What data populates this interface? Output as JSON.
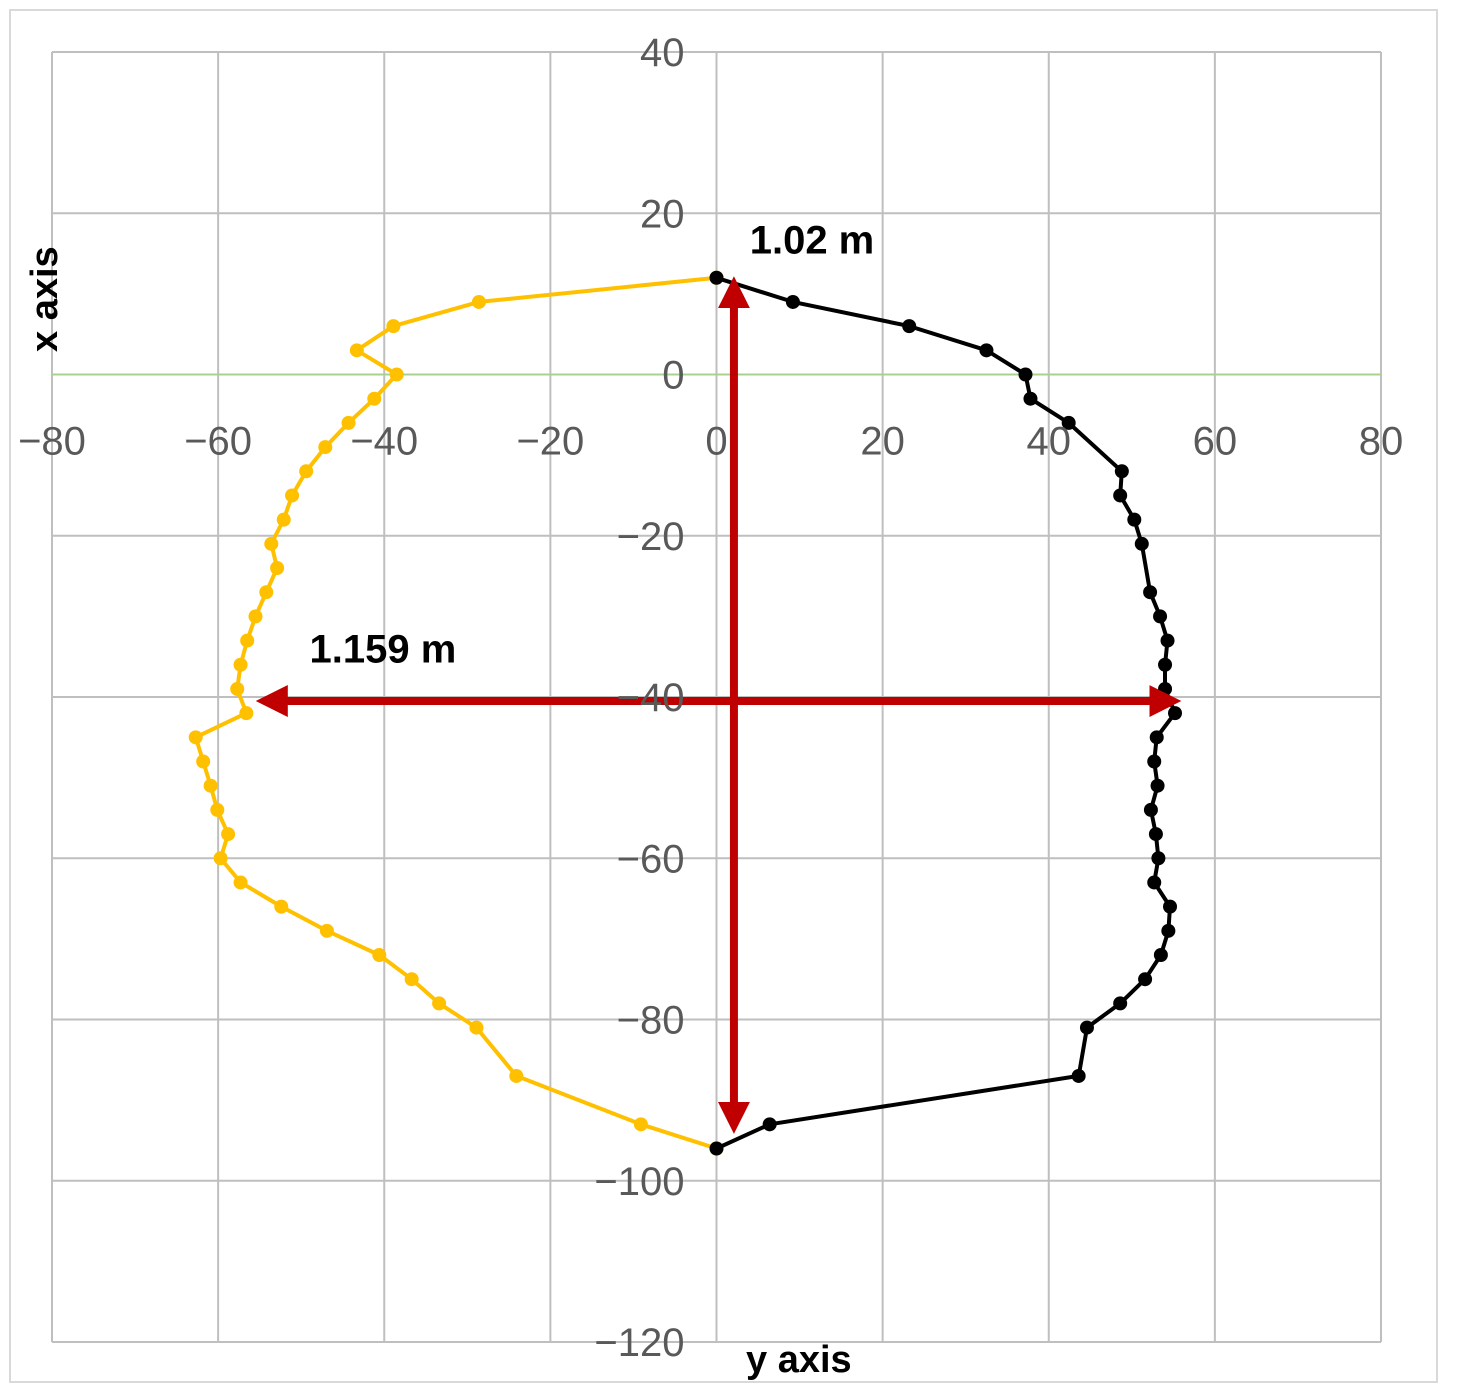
{
  "chart_data": {
    "type": "scatter",
    "xlabel": "y axis",
    "ylabel": "x axis",
    "xlim": [
      -80,
      80
    ],
    "ylim": [
      -120,
      40
    ],
    "x_ticks": [
      -80,
      -60,
      -40,
      -20,
      0,
      20,
      40,
      60,
      80
    ],
    "y_ticks": [
      40,
      20,
      0,
      -20,
      -40,
      -60,
      -80,
      -100,
      -120
    ],
    "x_tick_labels": [
      "−80",
      "−60",
      "−40",
      "−20",
      "0",
      "20",
      "40",
      "60",
      "80"
    ],
    "y_tick_labels": [
      "40",
      "20",
      "0",
      "−20",
      "−40",
      "−60",
      "−80",
      "−100",
      "−120"
    ],
    "grid": true,
    "series": [
      {
        "color": "#ffc000",
        "points": [
          [
            0,
            12
          ],
          [
            -28.6,
            9
          ],
          [
            -38.9,
            6
          ],
          [
            -43.3,
            3
          ],
          [
            -38.5,
            0
          ],
          [
            -41.2,
            -3
          ],
          [
            -44.3,
            -6
          ],
          [
            -47.1,
            -9
          ],
          [
            -49.4,
            -12
          ],
          [
            -51.1,
            -15
          ],
          [
            -52.1,
            -18
          ],
          [
            -53.6,
            -21
          ],
          [
            -52.9,
            -24
          ],
          [
            -54.2,
            -27
          ],
          [
            -55.5,
            -30
          ],
          [
            -56.5,
            -33
          ],
          [
            -57.3,
            -36
          ],
          [
            -57.7,
            -39
          ],
          [
            -56.6,
            -42
          ],
          [
            -62.7,
            -45
          ],
          [
            -61.8,
            -48
          ],
          [
            -60.9,
            -51
          ],
          [
            -60.1,
            -54
          ],
          [
            -58.8,
            -57
          ],
          [
            -59.7,
            -60
          ],
          [
            -57.3,
            -63
          ],
          [
            -52.4,
            -66
          ],
          [
            -46.9,
            -69
          ],
          [
            -40.6,
            -72
          ],
          [
            -36.7,
            -75
          ],
          [
            -33.4,
            -78
          ],
          [
            -28.9,
            -81
          ],
          [
            -24.1,
            -87
          ],
          [
            -9.1,
            -93
          ],
          [
            0,
            -96
          ]
        ]
      },
      {
        "color": "#000000",
        "points": [
          [
            0,
            12
          ],
          [
            9.2,
            9
          ],
          [
            23.2,
            6
          ],
          [
            32.5,
            3
          ],
          [
            37.2,
            0
          ],
          [
            37.8,
            -3
          ],
          [
            42.4,
            -6
          ],
          [
            48.8,
            -12
          ],
          [
            48.6,
            -15
          ],
          [
            50.3,
            -18
          ],
          [
            51.2,
            -21
          ],
          [
            52.2,
            -27
          ],
          [
            53.4,
            -30
          ],
          [
            54.3,
            -33
          ],
          [
            54.0,
            -36
          ],
          [
            54.0,
            -39
          ],
          [
            55.2,
            -42
          ],
          [
            53.0,
            -45
          ],
          [
            52.7,
            -48
          ],
          [
            53.1,
            -51
          ],
          [
            52.3,
            -54
          ],
          [
            52.9,
            -57
          ],
          [
            53.2,
            -60
          ],
          [
            52.7,
            -63
          ],
          [
            54.6,
            -66
          ],
          [
            54.4,
            -69
          ],
          [
            53.5,
            -72
          ],
          [
            51.6,
            -75
          ],
          [
            48.6,
            -78
          ],
          [
            44.6,
            -81
          ],
          [
            43.6,
            -87
          ],
          [
            6.4,
            -93
          ],
          [
            0,
            -96
          ]
        ]
      }
    ],
    "arrows": [
      {
        "from": [
          2.1,
          11.2
        ],
        "to": [
          2.1,
          -93.2
        ],
        "color": "#c00000"
      },
      {
        "from": [
          -54.5,
          -40.5
        ],
        "to": [
          55.0,
          -40.5
        ],
        "color": "#c00000"
      }
    ],
    "annotations": [
      {
        "text": "1.02 m",
        "x": 4,
        "y": 15
      },
      {
        "text": "1.159 m",
        "x": -49,
        "y": -35.7
      }
    ]
  }
}
